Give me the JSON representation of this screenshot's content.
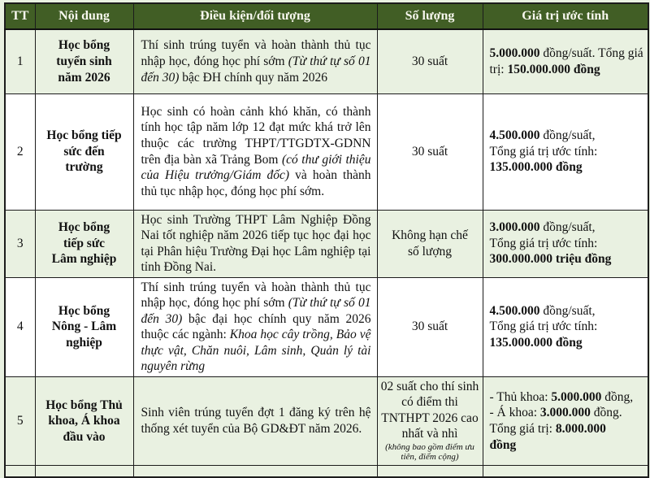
{
  "colors": {
    "header_background": "#415e25",
    "header_text": "#f7f7ee",
    "row_green": "#e9f1e1",
    "row_white": "#ffffff",
    "border": "#1c1c1c"
  },
  "table": {
    "columns": [
      {
        "key": "tt",
        "label": "TT"
      },
      {
        "key": "name",
        "label": "Nội dung"
      },
      {
        "key": "condition",
        "label": "Điều kiện/đối tượng"
      },
      {
        "key": "quantity",
        "label": "Số lượng"
      },
      {
        "key": "value",
        "label": "Giá trị ước tính"
      }
    ],
    "rows": [
      {
        "tt": "1",
        "shade": "green",
        "name": "Học bổng\ntuyển sinh\nnăm 2026",
        "condition": [
          {
            "t": "Thí sinh trúng tuyển và hoàn thành thủ tục nhập học, đóng học phí sớm "
          },
          {
            "t": "(Từ thứ tự số 01 đến 30)",
            "i": true
          },
          {
            "t": " bậc ĐH chính quy năm 2026"
          }
        ],
        "quantity": [
          {
            "t": "30 suất"
          }
        ],
        "value": [
          {
            "t": "5.000.000",
            "b": true
          },
          {
            "t": " đồng/suất. Tổng giá trị: "
          },
          {
            "t": "150.000.000 đồng",
            "b": true
          }
        ]
      },
      {
        "tt": "2",
        "shade": "white",
        "name": "Học bổng tiếp\nsức đến\ntrường",
        "condition": [
          {
            "t": "Học sinh có hoàn cảnh khó khăn, có thành tính học tập năm lớp 12 đạt mức khá trở lên thuộc các trường THPT/TTGDTX-GDNN trên địa bàn xã Trảng Bom "
          },
          {
            "t": "(có thư giới thiệu của Hiệu trưởng/Giám đốc)",
            "i": true
          },
          {
            "t": " và hoàn thành thủ tục nhập học, đóng học phí sớm."
          }
        ],
        "quantity": [
          {
            "t": "30 suất"
          }
        ],
        "value": [
          {
            "t": "4.500.000",
            "b": true
          },
          {
            "t": " đồng/suất,\nTổng giá trị ước tính:\n"
          },
          {
            "t": "135.000.000 đồng",
            "b": true
          }
        ]
      },
      {
        "tt": "3",
        "shade": "green",
        "name": "Học bổng\ntiếp sức\nLâm nghiệp",
        "condition": [
          {
            "t": "Học sinh Trường THPT Lâm Nghiệp Đồng Nai tốt nghiệp năm 2026 tiếp tục học đại học tại Phân hiệu Trường Đại học Lâm nghiệp tại tỉnh Đồng Nai."
          }
        ],
        "quantity": [
          {
            "t": "Không hạn chế\nsố lượng"
          }
        ],
        "value": [
          {
            "t": "3.000.000",
            "b": true
          },
          {
            "t": " đồng/suất,\nTổng giá trị ước tính:\n"
          },
          {
            "t": "300.000.000 triệu đồng",
            "b": true
          }
        ]
      },
      {
        "tt": "4",
        "shade": "white",
        "name": "Học bổng\nNông - Lâm\nnghiệp",
        "condition": [
          {
            "t": "Thí sinh trúng tuyển và hoàn thành thủ tục nhập học, đóng học phí sớm "
          },
          {
            "t": "(Từ thứ tự số 01 đến 30)",
            "i": true
          },
          {
            "t": " bậc đại học chính quy năm 2026 thuộc các ngành: "
          },
          {
            "t": "Khoa học cây trồng, Bảo vệ thực vật, Chăn nuôi, Lâm sinh, Quản lý tài nguyên rừng",
            "i": true
          }
        ],
        "quantity": [
          {
            "t": "30 suất"
          }
        ],
        "value": [
          {
            "t": "4.500.000",
            "b": true
          },
          {
            "t": " đồng/suất,\nTổng giá trị ước tính:\n"
          },
          {
            "t": "135.000.000 đồng",
            "b": true
          }
        ]
      },
      {
        "tt": "5",
        "shade": "green",
        "name": "Học bổng Thủ\nkhoa, Á khoa\nđầu vào",
        "condition": [
          {
            "t": "Sinh viên trúng tuyển đợt 1 đăng ký trên hệ thống xét tuyển của Bộ GD&ĐT năm 2026."
          }
        ],
        "quantity": [
          {
            "t": "02 suất cho thí sinh có điểm thi TNTHPT 2026 cao nhất và nhì\n"
          },
          {
            "t": "(không bao gồm điểm ưu tiên, điểm cộng)",
            "i": true,
            "s": true
          }
        ],
        "value": [
          {
            "t": "- Thủ khoa: "
          },
          {
            "t": "5.000.000",
            "b": true
          },
          {
            "t": " đồng,\n- Á khoa: "
          },
          {
            "t": "3.000.000",
            "b": true
          },
          {
            "t": " đồng.\nTổng giá trị: "
          },
          {
            "t": "8.000.000\nđồng",
            "b": true
          }
        ]
      }
    ]
  }
}
